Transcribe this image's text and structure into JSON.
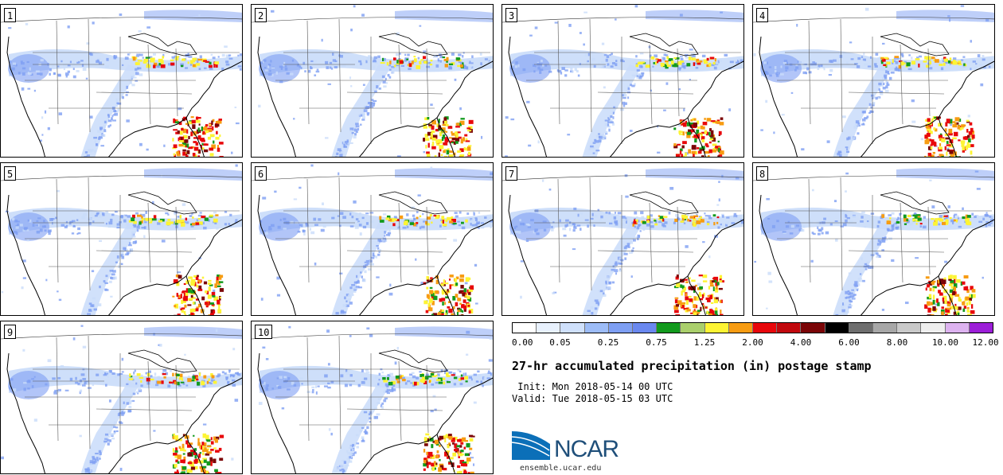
{
  "panels": [
    {
      "label": "1"
    },
    {
      "label": "2"
    },
    {
      "label": "3"
    },
    {
      "label": "4"
    },
    {
      "label": "5"
    },
    {
      "label": "6"
    },
    {
      "label": "7"
    },
    {
      "label": "8"
    },
    {
      "label": "9"
    },
    {
      "label": "10"
    }
  ],
  "colorbar": {
    "colors": [
      "#ffffff",
      "#e8f1fd",
      "#cfe0fb",
      "#9dbcf7",
      "#7e9ff3",
      "#6a88ef",
      "#129a1d",
      "#aacf6c",
      "#fdf434",
      "#f79c12",
      "#e8070b",
      "#c1080d",
      "#7b0507",
      "#000000",
      "#6e6e6e",
      "#a7a7a7",
      "#c9c9c9",
      "#eeeeee",
      "#ddb3f0",
      "#9c1ed8"
    ],
    "tick_labels": [
      "0.00",
      "0.05",
      "0.25",
      "0.75",
      "1.25",
      "2.00",
      "4.00",
      "6.00",
      "8.00",
      "10.00",
      "12.00"
    ]
  },
  "title": "27-hr accumulated precipitation (in) postage stamp",
  "init_line": " Init: Mon 2018-05-14 00 UTC",
  "valid_line": "Valid: Tue 2018-05-15 03 UTC",
  "logo": {
    "name": "NCAR",
    "url": "ensemble.ucar.edu"
  },
  "palette": {
    "light": "#c9dcfa",
    "blue": "#7e9ff3",
    "green": "#129a1d",
    "yellow": "#fdf434",
    "orange": "#f79c12",
    "red": "#e8070b",
    "darkred": "#7b0507"
  }
}
